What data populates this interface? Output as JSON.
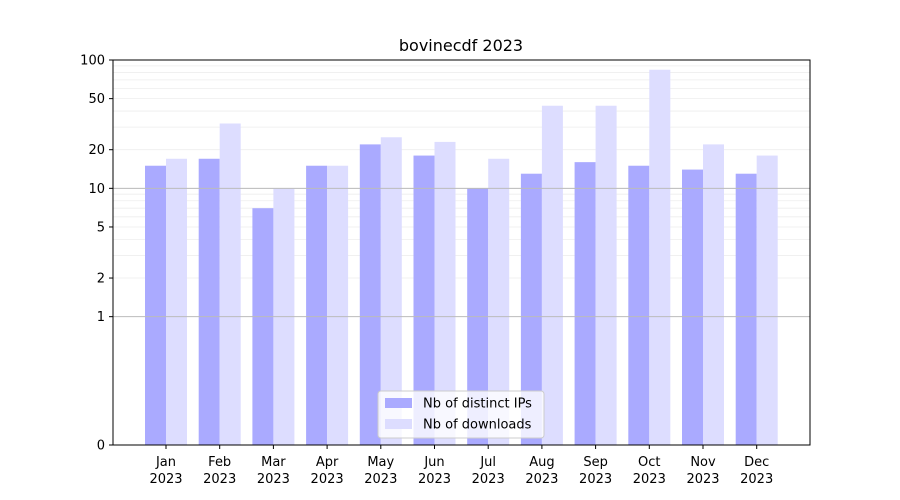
{
  "chart_data": {
    "type": "bar",
    "title": "bovinecdf 2023",
    "xlabel": "",
    "ylabel": "",
    "categories": [
      {
        "month": "Jan",
        "year": "2023"
      },
      {
        "month": "Feb",
        "year": "2023"
      },
      {
        "month": "Mar",
        "year": "2023"
      },
      {
        "month": "Apr",
        "year": "2023"
      },
      {
        "month": "May",
        "year": "2023"
      },
      {
        "month": "Jun",
        "year": "2023"
      },
      {
        "month": "Jul",
        "year": "2023"
      },
      {
        "month": "Aug",
        "year": "2023"
      },
      {
        "month": "Sep",
        "year": "2023"
      },
      {
        "month": "Oct",
        "year": "2023"
      },
      {
        "month": "Nov",
        "year": "2023"
      },
      {
        "month": "Dec",
        "year": "2023"
      }
    ],
    "series": [
      {
        "name": "Nb of distinct IPs",
        "color": "#aaaaff",
        "values": [
          15,
          17,
          7,
          15,
          22,
          18,
          10,
          13,
          16,
          15,
          14,
          13
        ]
      },
      {
        "name": "Nb of downloads",
        "color": "#ddddff",
        "values": [
          17,
          32,
          10,
          15,
          25,
          23,
          17,
          44,
          44,
          84,
          22,
          18
        ]
      }
    ],
    "y_scale": "symlog",
    "ylim": [
      0,
      100
    ],
    "y_ticks": [
      0,
      1,
      2,
      5,
      10,
      20,
      50,
      100
    ],
    "reference_lines": [
      1,
      10
    ],
    "grid": "minor horizontal",
    "legend_position": "bottom-center"
  }
}
